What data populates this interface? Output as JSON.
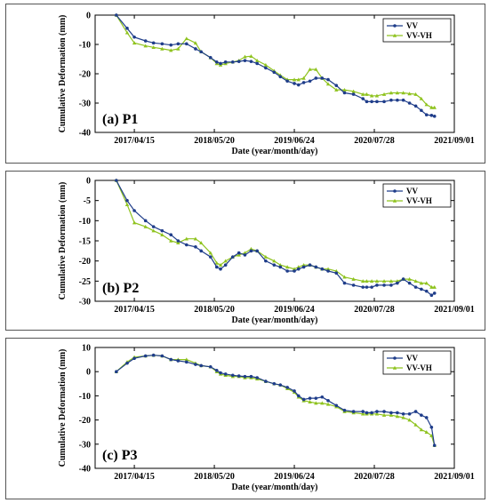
{
  "colors": {
    "vv": "#1f3d8a",
    "vvvh": "#8fc31f",
    "frame": "#000000"
  },
  "chart_data": [
    {
      "type": "line",
      "panel_label": "(a) P1",
      "xlabel": "Date (year/month/day)",
      "ylabel": "Cumulative Deformation (mm)",
      "ylim": [
        -40,
        0
      ],
      "yticks": [
        0,
        -10,
        -20,
        -30,
        -40
      ],
      "xlim": [
        "2016-10-01",
        "2021-09-01"
      ],
      "xticks": [
        "2017/04/15",
        "2018/05/20",
        "2019/06/24",
        "2020/07/28",
        "2021/09/01"
      ],
      "legend": "top-right",
      "series": [
        {
          "name": "VV",
          "marker": "dot",
          "x": [
            "2017-01-15",
            "2017-03-10",
            "2017-04-15",
            "2017-06-10",
            "2017-07-20",
            "2017-09-01",
            "2017-10-15",
            "2017-11-20",
            "2018-01-01",
            "2018-02-15",
            "2018-03-15",
            "2018-05-01",
            "2018-06-01",
            "2018-06-20",
            "2018-07-15",
            "2018-08-20",
            "2018-09-20",
            "2018-10-20",
            "2018-11-20",
            "2018-12-20",
            "2019-02-01",
            "2019-03-15",
            "2019-04-15",
            "2019-05-20",
            "2019-06-24",
            "2019-07-15",
            "2019-08-10",
            "2019-09-10",
            "2019-10-10",
            "2019-11-10",
            "2019-12-10",
            "2020-01-20",
            "2020-03-01",
            "2020-04-15",
            "2020-06-01",
            "2020-06-20",
            "2020-07-15",
            "2020-08-10",
            "2020-09-15",
            "2020-10-20",
            "2020-11-20",
            "2020-12-20",
            "2021-01-20",
            "2021-02-20",
            "2021-03-20",
            "2021-04-15",
            "2021-05-10",
            "2021-05-25"
          ],
          "y": [
            0,
            -4.5,
            -7.5,
            -8.8,
            -9.5,
            -9.8,
            -10.2,
            -9.8,
            -9.8,
            -11.5,
            -12.5,
            -14.5,
            -16,
            -16.5,
            -16,
            -16,
            -15.8,
            -15.5,
            -15.8,
            -16.5,
            -18,
            -19.5,
            -21,
            -22.5,
            -23.3,
            -23.8,
            -23,
            -22.5,
            -21.5,
            -21.5,
            -22,
            -24,
            -26.5,
            -27,
            -28.5,
            -29.5,
            -29.5,
            -29.5,
            -29.5,
            -29,
            -29,
            -29,
            -30,
            -31,
            -32.5,
            -34,
            -34.2,
            -34.5
          ]
        },
        {
          "name": "VV-VH",
          "marker": "triangle",
          "x": [
            "2017-01-15",
            "2017-03-10",
            "2017-04-15",
            "2017-06-10",
            "2017-07-20",
            "2017-09-01",
            "2017-10-15",
            "2017-11-20",
            "2018-01-01",
            "2018-02-15",
            "2018-03-15",
            "2018-05-01",
            "2018-06-01",
            "2018-06-20",
            "2018-07-15",
            "2018-08-20",
            "2018-09-20",
            "2018-10-20",
            "2018-11-20",
            "2018-12-20",
            "2019-02-01",
            "2019-03-15",
            "2019-04-15",
            "2019-05-20",
            "2019-06-24",
            "2019-07-15",
            "2019-08-10",
            "2019-09-10",
            "2019-10-10",
            "2019-11-10",
            "2019-12-10",
            "2020-01-20",
            "2020-03-01",
            "2020-04-15",
            "2020-06-01",
            "2020-06-20",
            "2020-07-15",
            "2020-08-10",
            "2020-09-15",
            "2020-10-20",
            "2020-11-20",
            "2020-12-20",
            "2021-01-20",
            "2021-02-20",
            "2021-03-20",
            "2021-04-15",
            "2021-05-10",
            "2021-05-25"
          ],
          "y": [
            0,
            -6,
            -9.5,
            -10.5,
            -11,
            -11.5,
            -12,
            -11.5,
            -8,
            -9.5,
            -12.5,
            -14.5,
            -16.5,
            -17,
            -16.5,
            -16,
            -15.5,
            -14.2,
            -14,
            -15.5,
            -17,
            -19,
            -20.5,
            -22,
            -22,
            -22,
            -21.5,
            -18.5,
            -18.5,
            -21.5,
            -23.5,
            -25.5,
            -25.5,
            -26,
            -27,
            -27,
            -27.5,
            -27.5,
            -27,
            -26.5,
            -26.5,
            -26.5,
            -26.8,
            -27,
            -28.5,
            -30.5,
            -31.5,
            -31.5
          ]
        }
      ]
    },
    {
      "type": "line",
      "panel_label": "(b) P2",
      "xlabel": "Date (year/month/day)",
      "ylabel": "Cumulative Deformation (mm)",
      "ylim": [
        -30,
        0
      ],
      "yticks": [
        0,
        -5,
        -10,
        -15,
        -20,
        -25,
        -30
      ],
      "xlim": [
        "2016-10-01",
        "2021-09-01"
      ],
      "xticks": [
        "2017/04/15",
        "2018/05/20",
        "2019/06/24",
        "2020/07/28",
        "2021/09/01"
      ],
      "legend": "top-right",
      "series": [
        {
          "name": "VV",
          "marker": "dot",
          "x": [
            "2017-01-15",
            "2017-03-10",
            "2017-04-15",
            "2017-06-10",
            "2017-07-20",
            "2017-09-01",
            "2017-10-15",
            "2017-11-20",
            "2018-01-01",
            "2018-02-15",
            "2018-03-15",
            "2018-05-01",
            "2018-06-01",
            "2018-06-20",
            "2018-07-15",
            "2018-08-20",
            "2018-09-20",
            "2018-10-20",
            "2018-11-20",
            "2018-12-20",
            "2019-02-01",
            "2019-03-15",
            "2019-04-15",
            "2019-05-20",
            "2019-06-24",
            "2019-07-15",
            "2019-08-10",
            "2019-09-10",
            "2019-10-10",
            "2019-11-10",
            "2019-12-10",
            "2020-01-20",
            "2020-03-01",
            "2020-04-15",
            "2020-06-01",
            "2020-06-20",
            "2020-07-15",
            "2020-08-10",
            "2020-09-15",
            "2020-10-20",
            "2020-11-20",
            "2020-12-20",
            "2021-01-20",
            "2021-02-20",
            "2021-03-20",
            "2021-04-15",
            "2021-05-10",
            "2021-05-25"
          ],
          "y": [
            0,
            -5,
            -7.5,
            -10,
            -11.5,
            -12.5,
            -13.5,
            -15,
            -16,
            -16.5,
            -17.5,
            -19,
            -21.5,
            -22,
            -21,
            -19,
            -18,
            -18.5,
            -17.5,
            -17.5,
            -20,
            -21,
            -21.5,
            -22.5,
            -22.5,
            -22,
            -21.5,
            -21,
            -21.5,
            -22,
            -22.5,
            -23,
            -25.5,
            -26,
            -26.5,
            -26.5,
            -26.5,
            -26,
            -26,
            -26,
            -25.5,
            -24.5,
            -25.5,
            -26.5,
            -27,
            -27.5,
            -28.5,
            -28
          ]
        },
        {
          "name": "VV-VH",
          "marker": "triangle",
          "x": [
            "2017-01-15",
            "2017-03-10",
            "2017-04-15",
            "2017-06-10",
            "2017-07-20",
            "2017-09-01",
            "2017-10-15",
            "2017-11-20",
            "2018-01-01",
            "2018-02-15",
            "2018-03-15",
            "2018-05-01",
            "2018-06-01",
            "2018-06-20",
            "2018-07-15",
            "2018-08-20",
            "2018-09-20",
            "2018-10-20",
            "2018-11-20",
            "2018-12-20",
            "2019-02-01",
            "2019-03-15",
            "2019-04-15",
            "2019-05-20",
            "2019-06-24",
            "2019-07-15",
            "2019-08-10",
            "2019-09-10",
            "2019-10-10",
            "2019-11-10",
            "2019-12-10",
            "2020-01-20",
            "2020-03-01",
            "2020-04-15",
            "2020-06-01",
            "2020-06-20",
            "2020-07-15",
            "2020-08-10",
            "2020-09-15",
            "2020-10-20",
            "2020-11-20",
            "2020-12-20",
            "2021-01-20",
            "2021-02-20",
            "2021-03-20",
            "2021-04-15",
            "2021-05-10",
            "2021-05-25"
          ],
          "y": [
            0,
            -6,
            -10.5,
            -11.5,
            -12.5,
            -13.5,
            -15,
            -15.5,
            -14.5,
            -14.5,
            -15.5,
            -18,
            -20.5,
            -21,
            -20,
            -19,
            -18.5,
            -18,
            -17,
            -17.5,
            -19,
            -20,
            -21,
            -21.5,
            -22,
            -21.5,
            -21,
            -21,
            -21.5,
            -22,
            -22,
            -22.5,
            -24,
            -24.5,
            -25,
            -25,
            -25,
            -25,
            -25,
            -25,
            -25,
            -24.5,
            -24.5,
            -25,
            -25.5,
            -25.5,
            -26.5,
            -26.5
          ]
        }
      ]
    },
    {
      "type": "line",
      "panel_label": "(c) P3",
      "xlabel": "Date (year/month/day)",
      "ylabel": "Cumulative Deformation (mm)",
      "ylim": [
        -40,
        10
      ],
      "yticks": [
        10,
        0,
        -10,
        -20,
        -30,
        -40
      ],
      "xlim": [
        "2016-10-01",
        "2021-09-01"
      ],
      "xticks": [
        "2017/04/15",
        "2018/05/20",
        "2019/06/24",
        "2020/07/28",
        "2021/09/01"
      ],
      "legend": "top-right",
      "series": [
        {
          "name": "VV",
          "marker": "dot",
          "x": [
            "2017-01-15",
            "2017-03-10",
            "2017-04-15",
            "2017-06-10",
            "2017-07-20",
            "2017-09-01",
            "2017-10-15",
            "2017-11-20",
            "2018-01-01",
            "2018-02-15",
            "2018-03-15",
            "2018-05-01",
            "2018-06-01",
            "2018-06-20",
            "2018-07-15",
            "2018-08-20",
            "2018-09-20",
            "2018-10-20",
            "2018-11-20",
            "2018-12-20",
            "2019-02-01",
            "2019-03-15",
            "2019-04-15",
            "2019-05-20",
            "2019-06-24",
            "2019-07-15",
            "2019-08-10",
            "2019-09-10",
            "2019-10-10",
            "2019-11-10",
            "2019-12-10",
            "2020-01-20",
            "2020-03-01",
            "2020-04-15",
            "2020-06-01",
            "2020-06-20",
            "2020-07-15",
            "2020-08-10",
            "2020-09-15",
            "2020-10-20",
            "2020-11-20",
            "2020-12-20",
            "2021-01-20",
            "2021-02-20",
            "2021-03-20",
            "2021-04-15",
            "2021-05-10",
            "2021-05-25"
          ],
          "y": [
            0,
            3.5,
            5.5,
            6.5,
            6.8,
            6.5,
            5,
            4.5,
            4,
            3,
            2.5,
            2,
            0.5,
            -0.5,
            -1,
            -1.5,
            -1.8,
            -2,
            -2,
            -2.5,
            -4,
            -5,
            -5.5,
            -6.5,
            -8,
            -10,
            -11.5,
            -11,
            -11,
            -10.5,
            -12,
            -14,
            -16,
            -16.5,
            -16.5,
            -17,
            -17,
            -16.5,
            -16.5,
            -17,
            -17,
            -17.5,
            -17.5,
            -16.5,
            -18,
            -19,
            -23,
            -30.5
          ]
        },
        {
          "name": "VV-VH",
          "marker": "triangle",
          "x": [
            "2017-01-15",
            "2017-03-10",
            "2017-04-15",
            "2017-06-10",
            "2017-07-20",
            "2017-09-01",
            "2017-10-15",
            "2017-11-20",
            "2018-01-01",
            "2018-02-15",
            "2018-03-15",
            "2018-05-01",
            "2018-06-01",
            "2018-06-20",
            "2018-07-15",
            "2018-08-20",
            "2018-09-20",
            "2018-10-20",
            "2018-11-20",
            "2018-12-20",
            "2019-02-01",
            "2019-03-15",
            "2019-04-15",
            "2019-05-20",
            "2019-06-24",
            "2019-07-15",
            "2019-08-10",
            "2019-09-10",
            "2019-10-10",
            "2019-11-10",
            "2019-12-10",
            "2020-01-20",
            "2020-03-01",
            "2020-04-15",
            "2020-06-01",
            "2020-06-20",
            "2020-07-15",
            "2020-08-10",
            "2020-09-15",
            "2020-10-20",
            "2020-11-20",
            "2020-12-20",
            "2021-01-20",
            "2021-02-20",
            "2021-03-20",
            "2021-04-15",
            "2021-05-10",
            "2021-05-25"
          ],
          "y": [
            0,
            4,
            6,
            6.5,
            6.8,
            6.5,
            5,
            5,
            5,
            3.5,
            2.5,
            2,
            0,
            -1,
            -1.5,
            -2,
            -2,
            -2.5,
            -2.5,
            -3,
            -4,
            -5,
            -5.5,
            -7,
            -8.5,
            -10.5,
            -12,
            -12.5,
            -13,
            -13,
            -13.5,
            -14.5,
            -16.5,
            -17,
            -17.5,
            -17.5,
            -17.5,
            -17.5,
            -18,
            -18,
            -18.5,
            -19,
            -20,
            -22,
            -24,
            -25,
            -26.5,
            -30.5
          ]
        }
      ]
    }
  ]
}
